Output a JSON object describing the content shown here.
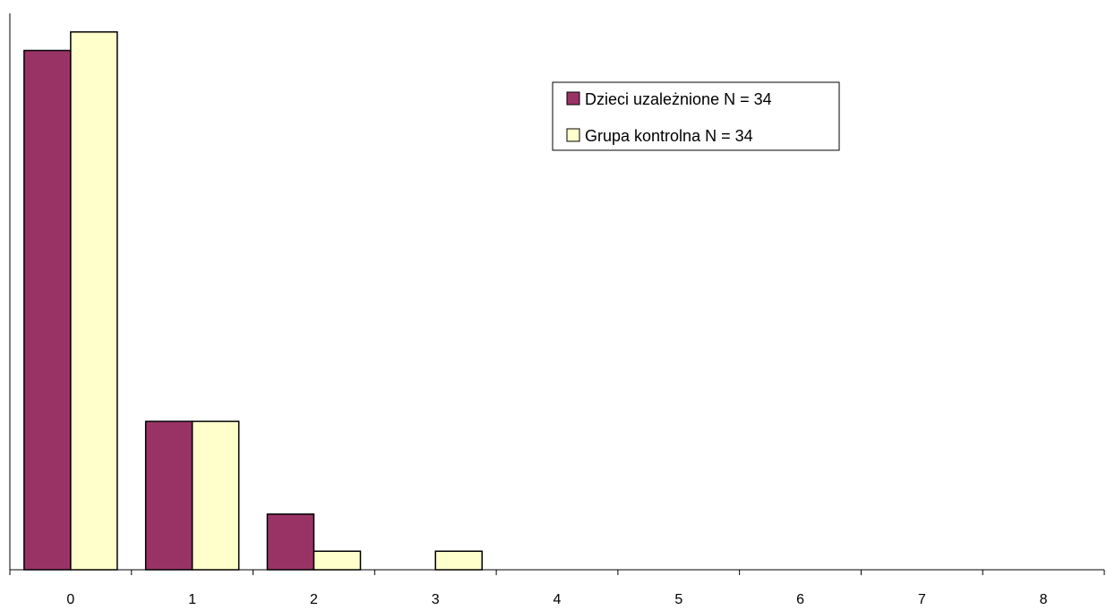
{
  "chart_data": {
    "type": "bar",
    "title": "",
    "xlabel": "",
    "ylabel": "",
    "categories": [
      "0",
      "1",
      "2",
      "3",
      "4",
      "5",
      "6",
      "7",
      "8"
    ],
    "series": [
      {
        "name": "Dzieci uzależnione N = 34",
        "values": [
          28,
          8,
          3,
          0,
          0,
          0,
          0,
          0,
          0
        ],
        "color": "#993366"
      },
      {
        "name": "Grupa kontrolna N = 34",
        "values": [
          29,
          8,
          1,
          1,
          0,
          0,
          0,
          0,
          0
        ],
        "color": "#FFFFCC"
      }
    ],
    "ylim": [
      0,
      30
    ],
    "grid": false,
    "legend_position": "top-right",
    "axis_color": "#000000",
    "bar_outline_color": "#000000"
  }
}
